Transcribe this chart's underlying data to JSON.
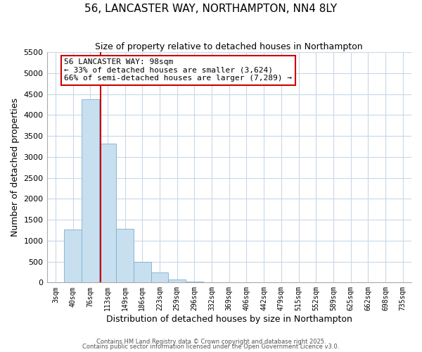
{
  "title": "56, LANCASTER WAY, NORTHAMPTON, NN4 8LY",
  "subtitle": "Size of property relative to detached houses in Northampton",
  "xlabel": "Distribution of detached houses by size in Northampton",
  "ylabel": "Number of detached properties",
  "bar_labels": [
    "3sqm",
    "40sqm",
    "76sqm",
    "113sqm",
    "149sqm",
    "186sqm",
    "223sqm",
    "259sqm",
    "296sqm",
    "332sqm",
    "369sqm",
    "406sqm",
    "442sqm",
    "479sqm",
    "515sqm",
    "552sqm",
    "589sqm",
    "625sqm",
    "662sqm",
    "698sqm",
    "735sqm"
  ],
  "bar_values": [
    0,
    1270,
    4370,
    3310,
    1280,
    500,
    235,
    80,
    20,
    5,
    2,
    1,
    0,
    0,
    0,
    0,
    0,
    0,
    0,
    0,
    0
  ],
  "bar_color": "#c8dff0",
  "bar_edge_color": "#7ab0d0",
  "bg_color": "#ffffff",
  "grid_color": "#c8d8e8",
  "annotation_title": "56 LANCASTER WAY: 98sqm",
  "annotation_line1": "← 33% of detached houses are smaller (3,624)",
  "annotation_line2": "66% of semi-detached houses are larger (7,289) →",
  "annotation_box_color": "#ffffff",
  "annotation_box_edge": "#cc0000",
  "vline_color": "#cc0000",
  "ylim": [
    0,
    5500
  ],
  "yticks": [
    0,
    500,
    1000,
    1500,
    2000,
    2500,
    3000,
    3500,
    4000,
    4500,
    5000,
    5500
  ],
  "footer1": "Contains HM Land Registry data © Crown copyright and database right 2025.",
  "footer2": "Contains public sector information licensed under the Open Government Licence v3.0."
}
